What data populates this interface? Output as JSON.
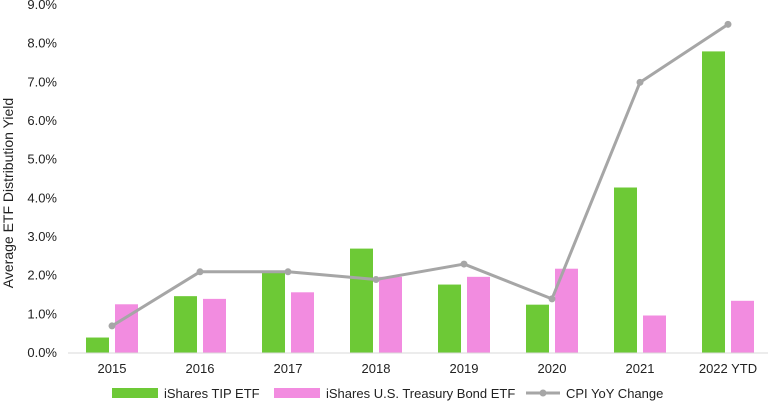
{
  "chart_data": {
    "type": "bar",
    "title": "",
    "ylabel": "Average ETF Distribution Yield",
    "xlabel": "",
    "ylim": [
      0,
      9
    ],
    "y_ticks": [
      "0.0%",
      "1.0%",
      "2.0%",
      "3.0%",
      "4.0%",
      "5.0%",
      "6.0%",
      "7.0%",
      "8.0%",
      "9.0%"
    ],
    "categories": [
      "2015",
      "2016",
      "2017",
      "2018",
      "2019",
      "2020",
      "2021",
      "2022 YTD"
    ],
    "series": [
      {
        "name": "iShares TIP ETF",
        "type": "bar",
        "color": "#6dc936",
        "values": [
          0.4,
          1.47,
          2.1,
          2.7,
          1.77,
          1.25,
          4.28,
          7.8
        ]
      },
      {
        "name": "iShares U.S. Treasury Bond ETF",
        "type": "bar",
        "color": "#f28ce0",
        "values": [
          1.26,
          1.4,
          1.57,
          1.97,
          1.97,
          2.18,
          0.97,
          1.35
        ]
      },
      {
        "name": "CPI YoY Change",
        "type": "line",
        "color": "#a6a6a6",
        "values": [
          0.7,
          2.1,
          2.1,
          1.9,
          2.3,
          1.4,
          7.0,
          8.5
        ]
      }
    ],
    "grid": false,
    "legend_position": "bottom"
  }
}
